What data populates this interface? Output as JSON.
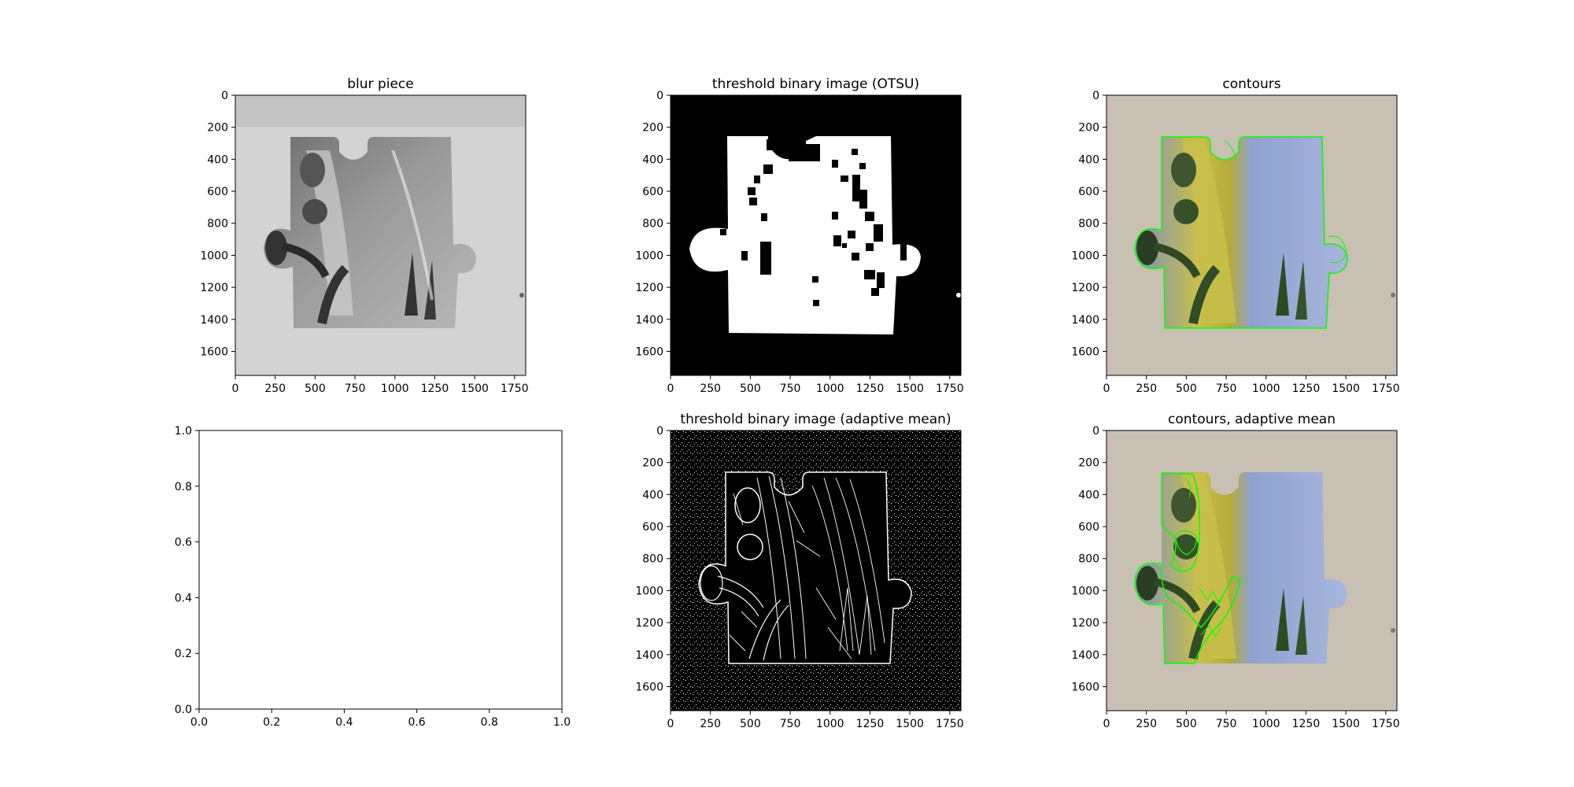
{
  "figure": {
    "panels": [
      {
        "id": "blur",
        "title": "blur piece",
        "kind": "image-gray",
        "xlim": [
          0,
          1820
        ],
        "ylim": [
          1750,
          0
        ],
        "xticks": [
          0,
          250,
          500,
          750,
          1000,
          1250,
          1500,
          1750
        ],
        "yticks": [
          0,
          200,
          400,
          600,
          800,
          1000,
          1200,
          1400,
          1600
        ]
      },
      {
        "id": "otsu",
        "title": "threshold binary image (OTSU)",
        "kind": "image-binary",
        "xlim": [
          0,
          1820
        ],
        "ylim": [
          1750,
          0
        ],
        "xticks": [
          0,
          250,
          500,
          750,
          1000,
          1250,
          1500,
          1750
        ],
        "yticks": [
          0,
          200,
          400,
          600,
          800,
          1000,
          1200,
          1400,
          1600
        ]
      },
      {
        "id": "contours",
        "title": "contours",
        "kind": "image-color",
        "xlim": [
          0,
          1820
        ],
        "ylim": [
          1750,
          0
        ],
        "xticks": [
          0,
          250,
          500,
          750,
          1000,
          1250,
          1500,
          1750
        ],
        "yticks": [
          0,
          200,
          400,
          600,
          800,
          1000,
          1200,
          1400,
          1600
        ]
      },
      {
        "id": "empty",
        "title": "",
        "kind": "empty",
        "xlim": [
          0,
          1
        ],
        "ylim": [
          0,
          1
        ],
        "xticks": [
          "0.0",
          "0.2",
          "0.4",
          "0.6",
          "0.8",
          "1.0"
        ],
        "yticks": [
          "0.0",
          "0.2",
          "0.4",
          "0.6",
          "0.8",
          "1.0"
        ]
      },
      {
        "id": "adaptive",
        "title": "threshold binary image (adaptive mean)",
        "kind": "image-edges",
        "xlim": [
          0,
          1820
        ],
        "ylim": [
          1750,
          0
        ],
        "xticks": [
          0,
          250,
          500,
          750,
          1000,
          1250,
          1500,
          1750
        ],
        "yticks": [
          0,
          200,
          400,
          600,
          800,
          1000,
          1200,
          1400,
          1600
        ]
      },
      {
        "id": "contours-adaptive",
        "title": "contours, adaptive mean",
        "kind": "image-color-adaptive",
        "xlim": [
          0,
          1820
        ],
        "ylim": [
          1750,
          0
        ],
        "xticks": [
          0,
          250,
          500,
          750,
          1000,
          1250,
          1500,
          1750
        ],
        "yticks": [
          0,
          200,
          400,
          600,
          800,
          1000,
          1200,
          1400,
          1600
        ]
      }
    ]
  },
  "colors": {
    "contour": "#00ff00",
    "board_gray": "#d3d3d3",
    "board_beige": "#c8c0b2",
    "sky_blue": "#8fa2cf",
    "leaf_yellow": "#c8c04a",
    "dark_green": "#2f4a22"
  }
}
